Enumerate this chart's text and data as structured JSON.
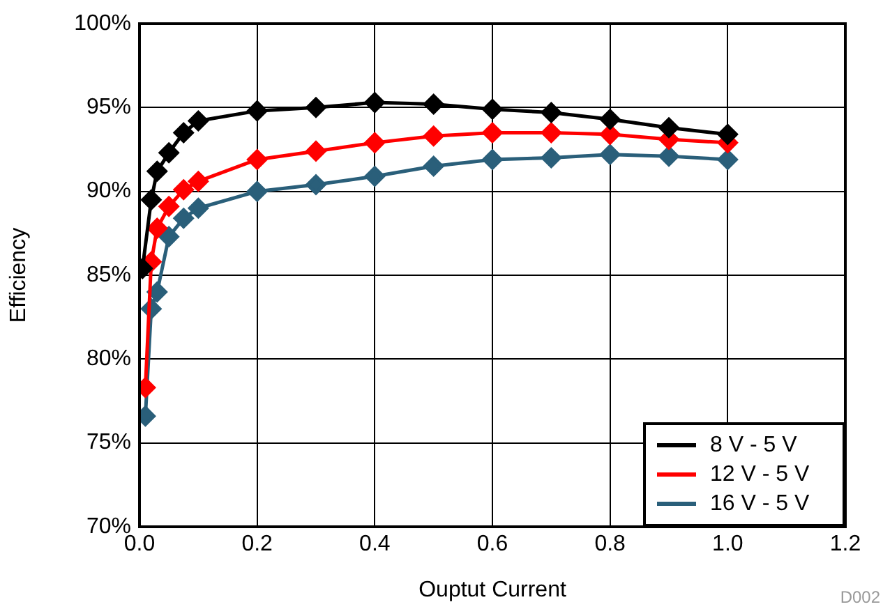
{
  "chart_data": {
    "type": "line",
    "xlabel": "Ouptut Current",
    "ylabel": "Efficiency",
    "xlim": [
      0,
      1.2
    ],
    "xticks": [
      {
        "value": 0,
        "label": "0.0"
      },
      {
        "value": 0.2,
        "label": "0.2"
      },
      {
        "value": 0.4,
        "label": "0.4"
      },
      {
        "value": 0.6,
        "label": "0.6"
      },
      {
        "value": 0.8,
        "label": "0.8"
      },
      {
        "value": 1,
        "label": "1.0"
      },
      {
        "value": 1.2,
        "label": "1.2"
      }
    ],
    "ylim": [
      70,
      100
    ],
    "yticks": [
      {
        "value": 70,
        "label": "70%"
      },
      {
        "value": 75,
        "label": "75%"
      },
      {
        "value": 80,
        "label": "80%"
      },
      {
        "value": 85,
        "label": "85%"
      },
      {
        "value": 90,
        "label": "90%"
      },
      {
        "value": 95,
        "label": "95%"
      },
      {
        "value": 100,
        "label": "100%"
      }
    ],
    "grid": true,
    "legend": "bottom right",
    "marker": "diamond",
    "line_style": "solid",
    "series": [
      {
        "name": "8 V - 5 V",
        "color": "#000000",
        "x": [
          0.005,
          0.02,
          0.03,
          0.05,
          0.075,
          0.1,
          0.2,
          0.3,
          0.4,
          0.5,
          0.6,
          0.7,
          0.8,
          0.9,
          1.0
        ],
        "values": [
          85.4,
          89.5,
          91.2,
          92.3,
          93.5,
          94.2,
          94.8,
          95.0,
          95.3,
          95.2,
          94.9,
          94.7,
          94.3,
          93.8,
          93.4
        ]
      },
      {
        "name": "12 V - 5 V",
        "color": "#ff0000",
        "x": [
          0.01,
          0.02,
          0.03,
          0.05,
          0.075,
          0.1,
          0.2,
          0.3,
          0.4,
          0.5,
          0.6,
          0.7,
          0.8,
          0.9,
          1.0
        ],
        "values": [
          78.3,
          85.8,
          87.8,
          89.1,
          90.1,
          90.6,
          91.9,
          92.4,
          92.9,
          93.3,
          93.5,
          93.5,
          93.4,
          93.1,
          92.9
        ]
      },
      {
        "name": "16 V - 5 V",
        "color": "#2a5f7a",
        "x": [
          0.01,
          0.02,
          0.03,
          0.05,
          0.075,
          0.1,
          0.2,
          0.3,
          0.4,
          0.5,
          0.6,
          0.7,
          0.8,
          0.9,
          1.0
        ],
        "values": [
          76.6,
          83.0,
          84.0,
          87.3,
          88.4,
          89.0,
          90.0,
          90.4,
          90.9,
          91.5,
          91.9,
          92.0,
          92.2,
          92.1,
          91.9
        ]
      }
    ],
    "annotations": [
      "D002"
    ]
  }
}
